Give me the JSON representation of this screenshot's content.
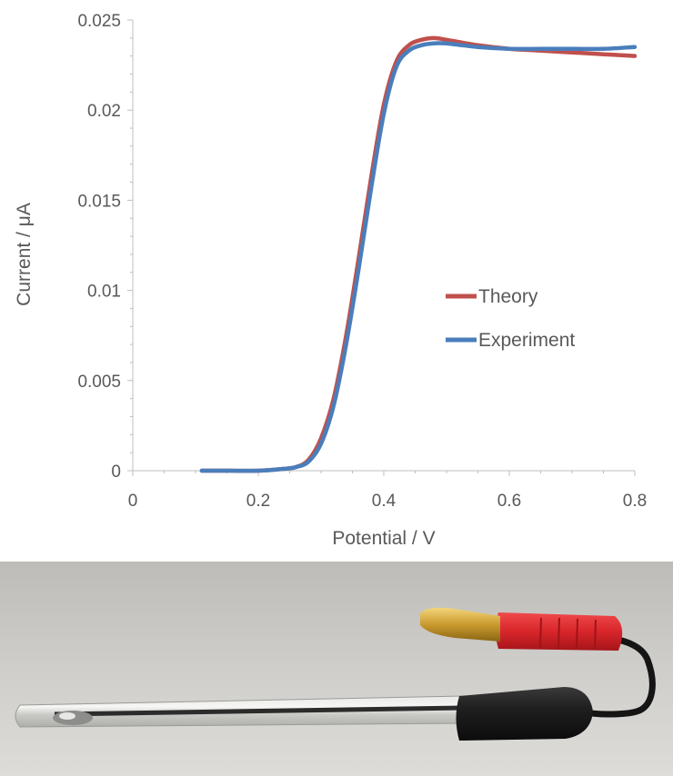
{
  "chart_data": {
    "type": "line",
    "title": "",
    "xlabel": "Potential / V",
    "ylabel": "Current / μA",
    "xlim": [
      0,
      0.8
    ],
    "ylim": [
      0,
      0.025
    ],
    "x_ticks": [
      0,
      0.2,
      0.4,
      0.6,
      0.8
    ],
    "x_tick_labels": [
      "0",
      "0.2",
      "0.4",
      "0.6",
      "0.8"
    ],
    "y_ticks": [
      0,
      0.005,
      0.01,
      0.015,
      0.02,
      0.025
    ],
    "y_tick_labels": [
      "0",
      "0.005",
      "0.01",
      "0.015",
      "0.02",
      "0.025"
    ],
    "grid": false,
    "legend_position": "center-right",
    "series": [
      {
        "name": "Theory",
        "color": "#c0504d",
        "x": [
          0.11,
          0.15,
          0.2,
          0.24,
          0.26,
          0.28,
          0.3,
          0.32,
          0.34,
          0.36,
          0.38,
          0.4,
          0.42,
          0.44,
          0.46,
          0.48,
          0.5,
          0.55,
          0.6,
          0.65,
          0.7,
          0.75,
          0.8
        ],
        "y": [
          0.0,
          0.0,
          0.0,
          0.0001,
          0.0002,
          0.0006,
          0.0018,
          0.004,
          0.0075,
          0.0118,
          0.0163,
          0.0203,
          0.0227,
          0.0236,
          0.0239,
          0.024,
          0.0239,
          0.0236,
          0.0234,
          0.0233,
          0.0232,
          0.0231,
          0.023
        ]
      },
      {
        "name": "Experiment",
        "color": "#4a7ebb",
        "x": [
          0.11,
          0.15,
          0.2,
          0.24,
          0.26,
          0.28,
          0.3,
          0.32,
          0.34,
          0.36,
          0.38,
          0.4,
          0.42,
          0.44,
          0.46,
          0.48,
          0.5,
          0.55,
          0.6,
          0.65,
          0.7,
          0.75,
          0.8
        ],
        "y": [
          0.0,
          0.0,
          0.0,
          0.0001,
          0.0002,
          0.0005,
          0.0015,
          0.0036,
          0.007,
          0.0112,
          0.0157,
          0.0198,
          0.0224,
          0.0233,
          0.0236,
          0.0237,
          0.0237,
          0.0235,
          0.0234,
          0.0234,
          0.0234,
          0.0234,
          0.0235
        ]
      }
    ]
  },
  "photo": {
    "subject": "electrode-with-red-banana-plug",
    "background_color": "#c9c8c4",
    "plug_color": "#d92b2f",
    "cap_color": "#1c1c1c",
    "pin_color": "#c8a23c"
  }
}
